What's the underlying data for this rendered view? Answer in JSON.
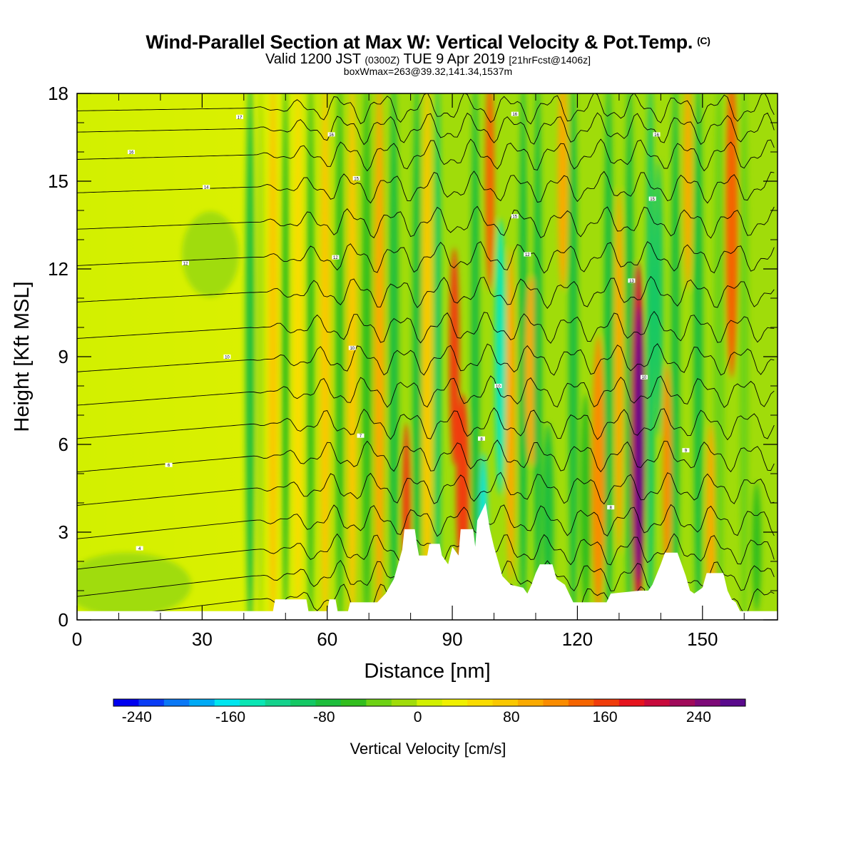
{
  "header": {
    "title": "Wind-Parallel Section at Max W: Vertical Velocity & Pot.Temp.",
    "copyright": "(C)",
    "valid_prefix": "Valid 1200 JST",
    "valid_utc": "(0300Z)",
    "valid_date": "TUE 9 Apr 2019",
    "forecast_info": "[21hrFcst@1406z]",
    "box_info": "boxWmax=263@39.32,141.34,1537m"
  },
  "chart_data": {
    "type": "heatmap",
    "xlabel": "Distance [nm]",
    "ylabel": "Height [Kft MSL]",
    "xlim": [
      0,
      168
    ],
    "ylim": [
      0,
      18
    ],
    "x_ticks": [
      0,
      30,
      60,
      90,
      120,
      150
    ],
    "y_ticks": [
      0,
      3,
      6,
      9,
      12,
      15,
      18
    ],
    "x_tick_labels": [
      "0",
      "30",
      "60",
      "90",
      "120",
      "150"
    ],
    "y_tick_labels": [
      "0",
      "3",
      "6",
      "9",
      "12",
      "15",
      "18"
    ],
    "colorbar": {
      "title": "Vertical Velocity [cm/s]",
      "min": -260,
      "max": 280,
      "step": 20,
      "tick_values": [
        -240,
        -160,
        -80,
        0,
        80,
        160,
        240
      ],
      "tick_labels": [
        "-240",
        "-160",
        "-80",
        "0",
        "80",
        "160",
        "240"
      ],
      "colors": [
        "#0000f0",
        "#0a3cf5",
        "#0a78f5",
        "#00aaf5",
        "#00e6f0",
        "#0ae6b4",
        "#14d28c",
        "#14c864",
        "#1ebe3c",
        "#32be1e",
        "#6ed214",
        "#a0dc0a",
        "#d2f000",
        "#f0f000",
        "#fadc00",
        "#fac800",
        "#faaa00",
        "#fa8c00",
        "#f56400",
        "#f03c0a",
        "#e6141e",
        "#c80a3c",
        "#a00a5a",
        "#7d0a78",
        "#5a0a8c"
      ]
    },
    "terrain_kft": [
      [
        0,
        0.3
      ],
      [
        20,
        0.3
      ],
      [
        40,
        0.3
      ],
      [
        47,
        0.3
      ],
      [
        47.5,
        0.7
      ],
      [
        53,
        0.7
      ],
      [
        55,
        0.7
      ],
      [
        55.5,
        0.3
      ],
      [
        60,
        0.3
      ],
      [
        60.5,
        0.7
      ],
      [
        62,
        0.7
      ],
      [
        62.5,
        0.3
      ],
      [
        65,
        0.3
      ],
      [
        65.5,
        0.6
      ],
      [
        72,
        0.6
      ],
      [
        74,
        0.9
      ],
      [
        76,
        1.4
      ],
      [
        78,
        2.4
      ],
      [
        78.5,
        3.1
      ],
      [
        81,
        3.1
      ],
      [
        81.5,
        2.6
      ],
      [
        82,
        2.2
      ],
      [
        84,
        2.2
      ],
      [
        84.5,
        2.6
      ],
      [
        87,
        2.6
      ],
      [
        87.5,
        2.2
      ],
      [
        89,
        1.9
      ],
      [
        90,
        2.5
      ],
      [
        91.5,
        2.2
      ],
      [
        92,
        3.1
      ],
      [
        95,
        3.1
      ],
      [
        95.5,
        2.5
      ],
      [
        96,
        3.4
      ],
      [
        98,
        4.0
      ],
      [
        99,
        3.1
      ],
      [
        100,
        2.5
      ],
      [
        101,
        2.0
      ],
      [
        102,
        1.5
      ],
      [
        104,
        1.2
      ],
      [
        107,
        1.1
      ],
      [
        108,
        0.9
      ],
      [
        109,
        1.2
      ],
      [
        110,
        1.6
      ],
      [
        111,
        1.9
      ],
      [
        114,
        1.9
      ],
      [
        115,
        1.4
      ],
      [
        117,
        1.2
      ],
      [
        118,
        0.9
      ],
      [
        119,
        0.6
      ],
      [
        127,
        0.6
      ],
      [
        128,
        0.9
      ],
      [
        135,
        1.0
      ],
      [
        137,
        1.0
      ],
      [
        138,
        1.2
      ],
      [
        140,
        1.9
      ],
      [
        141,
        2.3
      ],
      [
        144,
        2.3
      ],
      [
        145,
        1.9
      ],
      [
        146,
        1.5
      ],
      [
        147,
        1.0
      ],
      [
        148,
        0.9
      ],
      [
        150,
        1.1
      ],
      [
        151,
        1.6
      ],
      [
        155,
        1.6
      ],
      [
        156,
        1.0
      ],
      [
        157,
        0.7
      ],
      [
        158,
        0.6
      ],
      [
        159,
        0.3
      ],
      [
        168,
        0.3
      ]
    ],
    "theta_labels": [
      {
        "x": 15,
        "y": 2.45,
        "text": "4"
      },
      {
        "x": 22,
        "y": 5.3,
        "text": "6"
      },
      {
        "x": 68,
        "y": 6.3,
        "text": "7"
      },
      {
        "x": 97,
        "y": 6.2,
        "text": "8"
      },
      {
        "x": 128,
        "y": 3.85,
        "text": "8"
      },
      {
        "x": 146,
        "y": 5.8,
        "text": "9"
      },
      {
        "x": 36,
        "y": 9.0,
        "text": "10"
      },
      {
        "x": 66,
        "y": 9.3,
        "text": "10"
      },
      {
        "x": 101,
        "y": 8.0,
        "text": "10"
      },
      {
        "x": 136,
        "y": 8.3,
        "text": "10"
      },
      {
        "x": 26,
        "y": 12.2,
        "text": "12"
      },
      {
        "x": 62,
        "y": 12.4,
        "text": "12"
      },
      {
        "x": 108,
        "y": 12.5,
        "text": "12"
      },
      {
        "x": 133,
        "y": 11.6,
        "text": "13"
      },
      {
        "x": 31,
        "y": 14.8,
        "text": "14"
      },
      {
        "x": 67,
        "y": 15.1,
        "text": "15"
      },
      {
        "x": 105,
        "y": 13.8,
        "text": "15"
      },
      {
        "x": 138,
        "y": 14.4,
        "text": "15"
      },
      {
        "x": 13,
        "y": 16.0,
        "text": "16"
      },
      {
        "x": 61,
        "y": 16.6,
        "text": "16"
      },
      {
        "x": 105,
        "y": 17.3,
        "text": "16"
      },
      {
        "x": 139,
        "y": 16.6,
        "text": "16"
      },
      {
        "x": 39,
        "y": 17.2,
        "text": "17"
      }
    ]
  }
}
